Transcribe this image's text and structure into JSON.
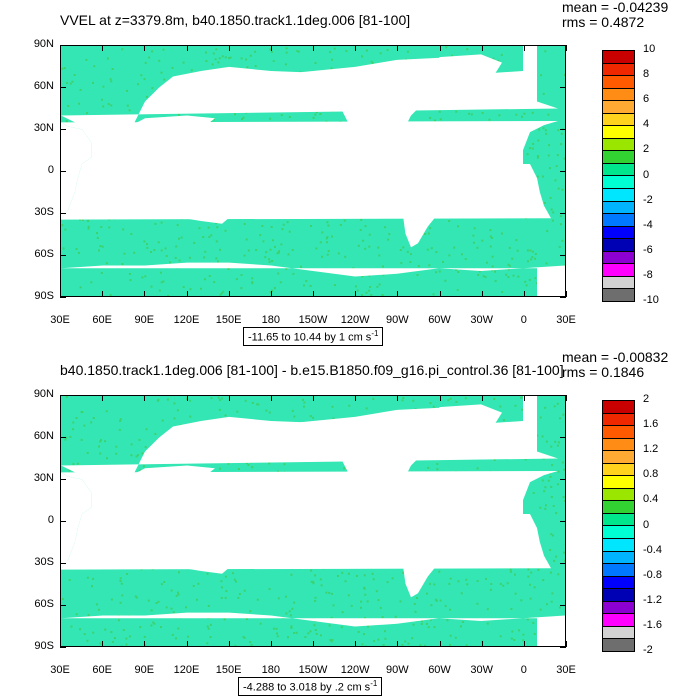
{
  "panels": [
    {
      "title": "VVEL at z=3379.8m, b40.1850.track1.1deg.006 [81-100]",
      "stats": {
        "mean": "mean = -0.04239",
        "rms": "rms = 0.4872"
      },
      "range_text": "-11.65 to 10.44 by 1 cm s",
      "range_sup": "-1",
      "colorbar_labels": [
        "10",
        "8",
        "6",
        "4",
        "2",
        "0",
        "-2",
        "-4",
        "-6",
        "-8",
        "-10"
      ]
    },
    {
      "title": "b40.1850.track1.1deg.006 [81-100] - b.e15.B1850.f09_g16.pi_control.36 [81-100]",
      "stats": {
        "mean": "mean = -0.00832",
        "rms": "rms = 0.1846"
      },
      "range_text": "-4.288 to 3.018 by .2 cm s",
      "range_sup": "-1",
      "colorbar_labels": [
        "2",
        "1.6",
        "1.2",
        "0.8",
        "0.4",
        "0",
        "-0.4",
        "-0.8",
        "-1.2",
        "-1.6",
        "-2"
      ]
    }
  ],
  "lat_labels": [
    "90N",
    "60N",
    "30N",
    "0",
    "30S",
    "60S",
    "90S"
  ],
  "lon_labels": [
    "30E",
    "60E",
    "90E",
    "120E",
    "150E",
    "180",
    "150W",
    "120W",
    "90W",
    "60W",
    "30W",
    "0",
    "30E"
  ],
  "colorbar_colors": [
    "#c80000",
    "#f02800",
    "#ff5a00",
    "#ff8c14",
    "#ffaa32",
    "#ffd21e",
    "#ffff00",
    "#9be600",
    "#32d232",
    "#00e68c",
    "#00ffd2",
    "#00e6ff",
    "#00b4ff",
    "#0078ff",
    "#0000ff",
    "#0000b4",
    "#8c00d2",
    "#ff00ff",
    "#d2d2d2",
    "#6e6e6e"
  ],
  "map_colors": {
    "ocean_fill": "#33e6b4",
    "ocean_alt": "#3cd26e",
    "land": "#ffffff"
  }
}
